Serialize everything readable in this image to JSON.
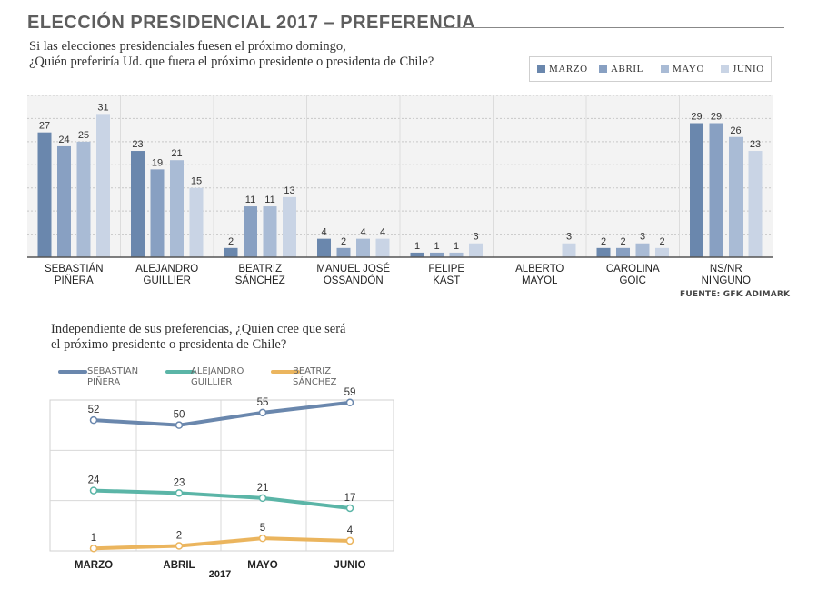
{
  "header": {
    "title": "ELECCIÓN PRESIDENCIAL 2017 – PREFERENCIA",
    "question_line1": "Si las elecciones presidenciales fuesen el próximo domingo,",
    "question_line2": "¿Quién preferiría Ud. que fuera el próximo presidente o presidenta de Chile?",
    "source": "FUENTE: GFK ADIMARK"
  },
  "colors": {
    "marzo": "#6a87ad",
    "abril": "#88a0c2",
    "mayo": "#a9bbd5",
    "junio": "#c9d4e5",
    "pinera": "#6a87ad",
    "guillier": "#5bb5a7",
    "sanchez": "#ebb55e"
  },
  "chart_data": [
    {
      "type": "bar",
      "categories": [
        [
          "SEBASTIÁN",
          "PIÑERA"
        ],
        [
          "ALEJANDRO",
          "GUILLIER"
        ],
        [
          "BEATRIZ",
          "SÁNCHEZ"
        ],
        [
          "MANUEL JOSÉ",
          "OSSANDÓN"
        ],
        [
          "FELIPE",
          "KAST"
        ],
        [
          "ALBERTO",
          "MAYOL"
        ],
        [
          "CAROLINA",
          "GOIC"
        ],
        [
          "NS/NR",
          "NINGUNO"
        ]
      ],
      "series": [
        {
          "name": "MARZO",
          "values": [
            27,
            23,
            2,
            4,
            1,
            null,
            2,
            29
          ]
        },
        {
          "name": "ABRIL",
          "values": [
            24,
            19,
            11,
            2,
            1,
            null,
            2,
            29
          ]
        },
        {
          "name": "MAYO",
          "values": [
            25,
            21,
            11,
            4,
            1,
            null,
            3,
            26
          ]
        },
        {
          "name": "JUNIO",
          "values": [
            31,
            15,
            13,
            4,
            3,
            3,
            2,
            23
          ]
        }
      ],
      "ylim": [
        0,
        35
      ],
      "grid": true,
      "legend": "top-right"
    },
    {
      "type": "line",
      "question_line1": "Independiente de sus preferencias, ¿Quien cree que será",
      "question_line2": "el próximo presidente o presidenta de Chile?",
      "x": [
        "MARZO",
        "ABRIL",
        "MAYO",
        "JUNIO"
      ],
      "xlabel": "2017",
      "series": [
        {
          "name": "SEBASTIAN PIÑERA",
          "name_lines": [
            "SEBASTIAN",
            "PIÑERA"
          ],
          "values": [
            52,
            50,
            55,
            59
          ]
        },
        {
          "name": "ALEJANDRO GUILLIER",
          "name_lines": [
            "ALEJANDRO",
            "GUILLIER"
          ],
          "values": [
            24,
            23,
            21,
            17
          ]
        },
        {
          "name": "BEATRIZ SÁNCHEZ",
          "name_lines": [
            "BEATRIZ",
            "SÁNCHEZ"
          ],
          "values": [
            1,
            2,
            5,
            4
          ]
        }
      ],
      "grid": true,
      "legend": "top-left"
    }
  ]
}
